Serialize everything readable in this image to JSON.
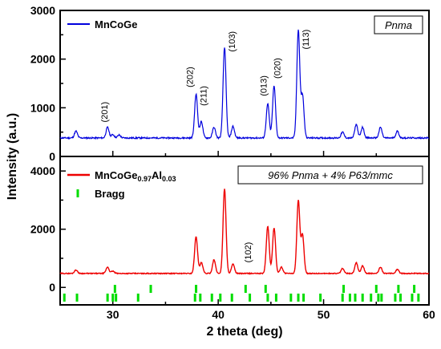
{
  "chart_data": [
    {
      "type": "line",
      "panel": "top",
      "xlabel": "2 theta (deg)",
      "ylabel": "Intensity (a.u.)",
      "xlim": [
        25,
        60
      ],
      "ylim": [
        0,
        3000
      ],
      "xticks": [
        30,
        40,
        50,
        60
      ],
      "yticks": [
        0,
        1000,
        2000,
        3000
      ],
      "annotation_box": "Pnma",
      "legend_position": "top-left",
      "series": [
        {
          "name": "MnCoGe",
          "color": "#0000dd",
          "baseline": 380,
          "peaks": [
            {
              "x": 26.5,
              "y": 520
            },
            {
              "x": 29.5,
              "y": 600
            },
            {
              "x": 30.0,
              "y": 450
            },
            {
              "x": 30.6,
              "y": 440
            },
            {
              "x": 37.9,
              "y": 1280
            },
            {
              "x": 38.4,
              "y": 720
            },
            {
              "x": 39.6,
              "y": 600
            },
            {
              "x": 40.6,
              "y": 2250
            },
            {
              "x": 41.4,
              "y": 620
            },
            {
              "x": 44.7,
              "y": 1080
            },
            {
              "x": 45.3,
              "y": 1450
            },
            {
              "x": 47.6,
              "y": 2600
            },
            {
              "x": 48.0,
              "y": 1250
            },
            {
              "x": 51.8,
              "y": 500
            },
            {
              "x": 53.1,
              "y": 660
            },
            {
              "x": 53.7,
              "y": 600
            },
            {
              "x": 55.4,
              "y": 600
            },
            {
              "x": 57.0,
              "y": 520
            }
          ]
        }
      ],
      "peak_labels": [
        {
          "x": 29.5,
          "y": 700,
          "text": "(201)"
        },
        {
          "x": 37.6,
          "y": 1420,
          "text": "(202)"
        },
        {
          "x": 38.9,
          "y": 1040,
          "text": "(211)"
        },
        {
          "x": 41.6,
          "y": 2150,
          "text": "(103)"
        },
        {
          "x": 44.6,
          "y": 1240,
          "text": "(013)"
        },
        {
          "x": 45.9,
          "y": 1600,
          "text": "(020)"
        },
        {
          "x": 48.6,
          "y": 2200,
          "text": "(113)"
        }
      ]
    },
    {
      "type": "line",
      "panel": "bottom",
      "xlabel": "2 theta (deg)",
      "ylabel": "Intensity (a.u.)",
      "xlim": [
        25,
        60
      ],
      "ylim": [
        -600,
        4500
      ],
      "xticks": [
        30,
        40,
        50,
        60
      ],
      "yticks": [
        0,
        2000,
        4000
      ],
      "annotation_box": "96% Pnma + 4% P63/mmc",
      "legend_position": "top-left",
      "series": [
        {
          "name": "MnCoGe0.97Al0.03",
          "name_parts": {
            "base": "MnCoGe",
            "sub1": "0.97",
            "mid": "Al",
            "sub2": "0.03"
          },
          "color": "#ee0000",
          "baseline": 480,
          "peaks": [
            {
              "x": 26.5,
              "y": 600
            },
            {
              "x": 29.5,
              "y": 700
            },
            {
              "x": 30.0,
              "y": 560
            },
            {
              "x": 37.9,
              "y": 1750
            },
            {
              "x": 38.4,
              "y": 850
            },
            {
              "x": 39.6,
              "y": 950
            },
            {
              "x": 40.6,
              "y": 3400
            },
            {
              "x": 41.4,
              "y": 800
            },
            {
              "x": 44.7,
              "y": 2100
            },
            {
              "x": 45.3,
              "y": 2050
            },
            {
              "x": 46.0,
              "y": 700
            },
            {
              "x": 47.6,
              "y": 2980
            },
            {
              "x": 48.0,
              "y": 1800
            },
            {
              "x": 51.8,
              "y": 650
            },
            {
              "x": 53.1,
              "y": 850
            },
            {
              "x": 53.7,
              "y": 750
            },
            {
              "x": 55.4,
              "y": 700
            },
            {
              "x": 57.0,
              "y": 620
            }
          ]
        },
        {
          "name": "Bragg",
          "color": "#00dd00",
          "type": "marker",
          "row1_y": -50,
          "row2_y": -350,
          "row1": [
            30.2,
            33.6,
            37.9,
            42.6,
            44.5,
            51.9,
            55.0,
            57.1,
            58.6
          ],
          "row2": [
            25.4,
            26.6,
            29.5,
            30.0,
            30.3,
            32.4,
            37.8,
            38.3,
            39.4,
            40.2,
            41.3,
            43.0,
            44.7,
            45.5,
            46.9,
            47.6,
            48.1,
            49.7,
            51.8,
            52.5,
            53.0,
            53.7,
            54.5,
            55.2,
            55.5,
            56.8,
            57.3,
            58.4,
            59.0
          ]
        }
      ],
      "peak_labels": [
        {
          "x": 43.1,
          "y": 850,
          "text": "(102)"
        }
      ]
    }
  ]
}
